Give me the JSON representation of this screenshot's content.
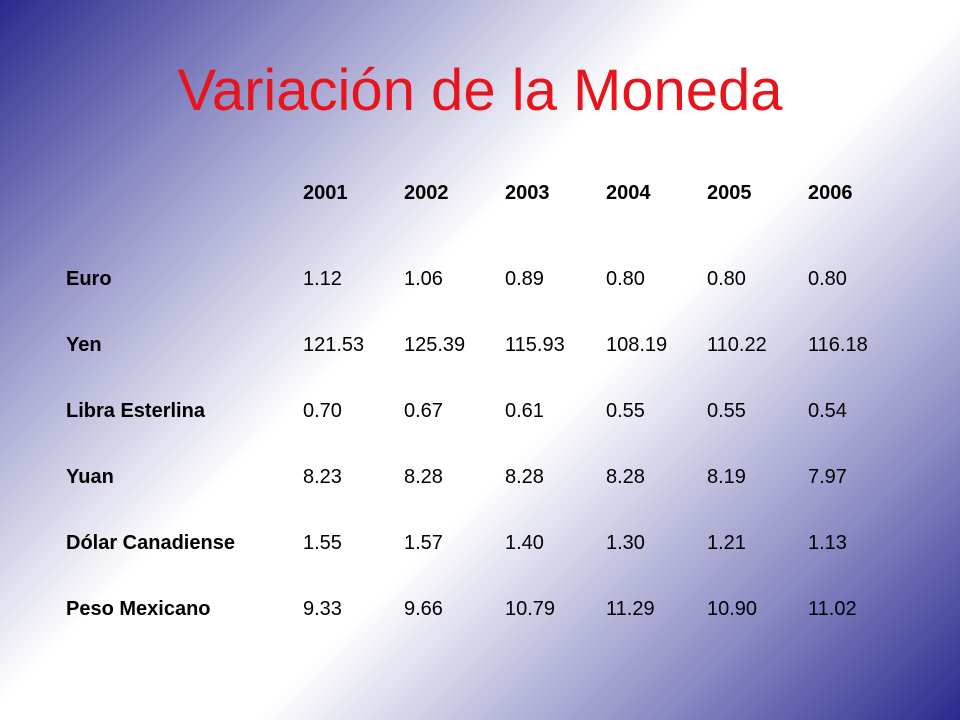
{
  "title": "Variación de la Moneda",
  "table": {
    "years": [
      "2001",
      "2002",
      "2003",
      "2004",
      "2005",
      "2006"
    ],
    "rows": [
      {
        "label": "Euro",
        "values": [
          "1.12",
          "1.06",
          "0.89",
          "0.80",
          "0.80",
          "0.80"
        ]
      },
      {
        "label": "Yen",
        "values": [
          "121.53",
          "125.39",
          "115.93",
          "108.19",
          "110.22",
          "116.18"
        ]
      },
      {
        "label": "Libra Esterlina",
        "values": [
          "0.70",
          "0.67",
          "0.61",
          "0.55",
          "0.55",
          "0.54"
        ]
      },
      {
        "label": "Yuan",
        "values": [
          "8.23",
          "8.28",
          "8.28",
          "8.28",
          "8.19",
          "7.97"
        ]
      },
      {
        "label": "Dólar Canadiense",
        "values": [
          "1.55",
          "1.57",
          "1.40",
          "1.30",
          "1.21",
          "1.13"
        ]
      },
      {
        "label": "Peso Mexicano",
        "values": [
          "9.33",
          "9.66",
          "10.79",
          "11.29",
          "10.90",
          "11.02"
        ]
      }
    ]
  },
  "colors": {
    "title": "#e8141c",
    "gradient_edge": "#2a2a8e",
    "gradient_center": "#ffffff"
  }
}
